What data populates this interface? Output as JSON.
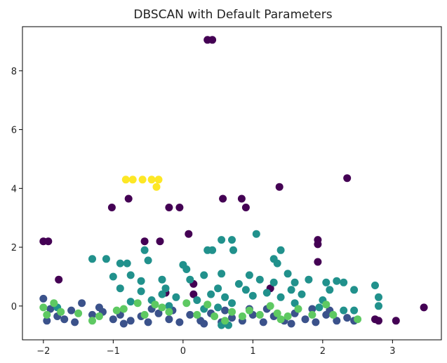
{
  "chart_data": {
    "type": "scatter",
    "title": "DBSCAN with Default Parameters",
    "xlabel": "",
    "ylabel": "",
    "xlim": [
      -2.3,
      3.7
    ],
    "ylim": [
      -1.15,
      9.5
    ],
    "xticks": [
      -2,
      -1,
      0,
      1,
      2,
      3
    ],
    "yticks": [
      0,
      2,
      4,
      6,
      8
    ],
    "grid": false,
    "legend": "none",
    "series": [
      {
        "color": "#440154",
        "points": [
          [
            0.35,
            9.05
          ],
          [
            0.42,
            9.05
          ],
          [
            -0.78,
            3.65
          ],
          [
            -1.02,
            3.35
          ],
          [
            -0.2,
            3.35
          ],
          [
            -0.05,
            3.35
          ],
          [
            0.57,
            3.65
          ],
          [
            0.84,
            3.65
          ],
          [
            0.9,
            3.35
          ],
          [
            1.38,
            4.05
          ],
          [
            2.35,
            4.35
          ],
          [
            -2.0,
            2.2
          ],
          [
            -1.93,
            2.2
          ],
          [
            -0.55,
            2.2
          ],
          [
            -0.33,
            2.2
          ],
          [
            0.08,
            2.45
          ],
          [
            1.93,
            2.25
          ],
          [
            1.93,
            2.1
          ],
          [
            1.93,
            1.5
          ],
          [
            -1.78,
            0.9
          ],
          [
            1.25,
            0.6
          ],
          [
            -0.25,
            0.45
          ],
          [
            0.15,
            0.75
          ],
          [
            0.15,
            0.4
          ],
          [
            2.75,
            -0.45
          ],
          [
            3.05,
            -0.5
          ],
          [
            3.45,
            -0.05
          ],
          [
            2.8,
            -0.5
          ]
        ]
      },
      {
        "color": "#3b528b",
        "points": [
          [
            -2.0,
            0.25
          ],
          [
            -1.9,
            -0.1
          ],
          [
            -1.8,
            -0.35
          ],
          [
            -1.6,
            -0.15
          ],
          [
            -1.45,
            0.1
          ],
          [
            -1.3,
            -0.3
          ],
          [
            -1.15,
            -0.2
          ],
          [
            -1.0,
            -0.45
          ],
          [
            -0.9,
            -0.3
          ],
          [
            -0.75,
            -0.5
          ],
          [
            -0.6,
            -0.35
          ],
          [
            -0.5,
            -0.55
          ],
          [
            -0.35,
            -0.25
          ],
          [
            -0.2,
            -0.45
          ],
          [
            -0.05,
            -0.55
          ],
          [
            0.1,
            -0.3
          ],
          [
            0.25,
            -0.5
          ],
          [
            0.4,
            -0.25
          ],
          [
            0.55,
            -0.55
          ],
          [
            0.7,
            -0.4
          ],
          [
            0.85,
            -0.5
          ],
          [
            1.0,
            -0.3
          ],
          [
            1.15,
            -0.55
          ],
          [
            1.3,
            -0.35
          ],
          [
            1.45,
            -0.5
          ],
          [
            1.6,
            -0.25
          ],
          [
            1.75,
            -0.45
          ],
          [
            1.9,
            -0.55
          ],
          [
            2.05,
            -0.3
          ],
          [
            2.2,
            -0.5
          ],
          [
            2.35,
            -0.4
          ],
          [
            2.45,
            -0.5
          ],
          [
            -1.7,
            -0.45
          ],
          [
            -1.2,
            -0.05
          ],
          [
            -0.85,
            -0.6
          ],
          [
            -0.15,
            -0.15
          ],
          [
            0.3,
            -0.6
          ],
          [
            0.95,
            -0.1
          ],
          [
            1.55,
            -0.6
          ],
          [
            2.1,
            -0.15
          ],
          [
            -1.95,
            -0.5
          ],
          [
            -1.55,
            -0.55
          ],
          [
            -0.45,
            -0.1
          ],
          [
            0.6,
            -0.15
          ],
          [
            1.2,
            -0.1
          ],
          [
            1.85,
            -0.1
          ]
        ]
      },
      {
        "color": "#21918c",
        "points": [
          [
            -1.3,
            1.6
          ],
          [
            -1.1,
            1.6
          ],
          [
            -0.9,
            1.45
          ],
          [
            -0.8,
            1.45
          ],
          [
            -0.55,
            1.9
          ],
          [
            -0.5,
            1.55
          ],
          [
            -0.6,
            0.85
          ],
          [
            -0.3,
            0.9
          ],
          [
            0.0,
            1.4
          ],
          [
            0.05,
            1.25
          ],
          [
            0.35,
            1.9
          ],
          [
            0.42,
            1.9
          ],
          [
            0.55,
            2.25
          ],
          [
            0.7,
            2.25
          ],
          [
            0.72,
            1.9
          ],
          [
            1.05,
            2.45
          ],
          [
            1.3,
            1.6
          ],
          [
            1.35,
            1.45
          ],
          [
            1.4,
            1.9
          ],
          [
            -1.0,
            1.0
          ],
          [
            -0.75,
            1.05
          ],
          [
            -0.9,
            0.6
          ],
          [
            -0.3,
            0.4
          ],
          [
            0.1,
            0.9
          ],
          [
            0.3,
            1.05
          ],
          [
            0.55,
            1.1
          ],
          [
            0.8,
            0.75
          ],
          [
            0.95,
            1.05
          ],
          [
            1.1,
            0.9
          ],
          [
            1.2,
            0.45
          ],
          [
            1.3,
            0.8
          ],
          [
            1.5,
            1.1
          ],
          [
            1.6,
            0.8
          ],
          [
            1.8,
            0.9
          ],
          [
            2.05,
            0.8
          ],
          [
            2.2,
            0.85
          ],
          [
            2.3,
            0.8
          ],
          [
            2.45,
            0.55
          ],
          [
            2.75,
            0.7
          ],
          [
            2.8,
            0.3
          ],
          [
            2.8,
            0.0
          ],
          [
            0.6,
            0.3
          ],
          [
            0.4,
            0.4
          ],
          [
            -0.6,
            0.5
          ],
          [
            -0.1,
            0.3
          ],
          [
            0.2,
            0.2
          ],
          [
            0.7,
            0.1
          ],
          [
            1.0,
            0.35
          ],
          [
            1.4,
            0.3
          ],
          [
            1.7,
            0.4
          ],
          [
            2.0,
            0.2
          ],
          [
            2.3,
            -0.15
          ],
          [
            2.45,
            -0.15
          ],
          [
            -0.2,
            0.0
          ],
          [
            0.5,
            -0.05
          ],
          [
            0.9,
            0.55
          ],
          [
            1.6,
            0.1
          ],
          [
            0.55,
            -0.65
          ],
          [
            0.65,
            -0.65
          ],
          [
            -0.75,
            0.15
          ],
          [
            -0.45,
            0.2
          ],
          [
            0.3,
            -0.1
          ],
          [
            1.95,
            -0.05
          ],
          [
            -1.8,
            -0.05
          ],
          [
            -0.25,
            0.6
          ],
          [
            0.5,
            0.6
          ],
          [
            1.55,
            0.55
          ],
          [
            2.1,
            0.55
          ]
        ]
      },
      {
        "color": "#5ec962",
        "points": [
          [
            -2.0,
            -0.05
          ],
          [
            -1.95,
            -0.3
          ],
          [
            -1.85,
            0.1
          ],
          [
            -1.5,
            -0.25
          ],
          [
            -1.2,
            -0.35
          ],
          [
            -0.95,
            -0.15
          ],
          [
            -0.85,
            -0.1
          ],
          [
            -0.65,
            0.1
          ],
          [
            -0.55,
            -0.3
          ],
          [
            -0.4,
            0.05
          ],
          [
            -0.2,
            -0.2
          ],
          [
            0.05,
            0.1
          ],
          [
            0.2,
            -0.3
          ],
          [
            0.35,
            0.05
          ],
          [
            0.45,
            -0.35
          ],
          [
            0.7,
            -0.2
          ],
          [
            0.85,
            -0.35
          ],
          [
            0.95,
            -0.15
          ],
          [
            1.1,
            -0.3
          ],
          [
            1.25,
            0.0
          ],
          [
            1.35,
            -0.25
          ],
          [
            1.5,
            -0.35
          ],
          [
            1.65,
            -0.1
          ],
          [
            1.85,
            -0.3
          ],
          [
            2.05,
            0.05
          ],
          [
            2.15,
            -0.3
          ],
          [
            2.5,
            -0.45
          ],
          [
            -1.75,
            -0.2
          ],
          [
            -1.3,
            -0.5
          ],
          [
            -0.3,
            -0.05
          ],
          [
            0.6,
            -0.5
          ],
          [
            1.4,
            -0.45
          ]
        ]
      },
      {
        "color": "#fde725",
        "points": [
          [
            -0.82,
            4.3
          ],
          [
            -0.72,
            4.3
          ],
          [
            -0.58,
            4.3
          ],
          [
            -0.45,
            4.3
          ],
          [
            -0.35,
            4.3
          ],
          [
            -0.38,
            4.05
          ]
        ]
      }
    ]
  }
}
